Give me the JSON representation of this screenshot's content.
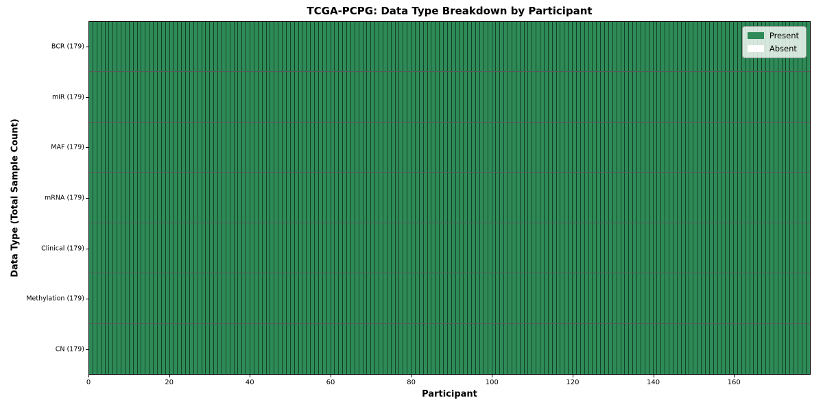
{
  "chart_data": {
    "type": "heatmap",
    "title": "TCGA-PCPG: Data Type Breakdown by Participant",
    "xlabel": "Participant",
    "ylabel": "Data Type (Total Sample Count)",
    "n_participants": 179,
    "x_range": [
      0,
      179
    ],
    "x_ticks": [
      0,
      20,
      40,
      60,
      80,
      100,
      120,
      140,
      160
    ],
    "grid": "cell edges only, no gridlines",
    "legend_position": "upper right",
    "legend": [
      {
        "label": "Present",
        "color": "#2e8b57"
      },
      {
        "label": "Absent",
        "color": "#ffffff"
      }
    ],
    "cell_present_color": "#2e8b57",
    "cell_absent_color": "#ffffff",
    "cell_edge_color": "rgba(0,0,0,0.55)",
    "rows": [
      {
        "label": "BCR (179)",
        "data_type": "BCR",
        "total_samples": 179,
        "present_count": 179,
        "absent_count": 0,
        "present_participant_range": [
          0,
          178
        ]
      },
      {
        "label": "miR (179)",
        "data_type": "miR",
        "total_samples": 179,
        "present_count": 179,
        "absent_count": 0,
        "present_participant_range": [
          0,
          178
        ]
      },
      {
        "label": "MAF (179)",
        "data_type": "MAF",
        "total_samples": 179,
        "present_count": 179,
        "absent_count": 0,
        "present_participant_range": [
          0,
          178
        ]
      },
      {
        "label": "mRNA (179)",
        "data_type": "mRNA",
        "total_samples": 179,
        "present_count": 179,
        "absent_count": 0,
        "present_participant_range": [
          0,
          178
        ]
      },
      {
        "label": "Clinical (179)",
        "data_type": "Clinical",
        "total_samples": 179,
        "present_count": 179,
        "absent_count": 0,
        "present_participant_range": [
          0,
          178
        ]
      },
      {
        "label": "Methylation (179)",
        "data_type": "Methylation",
        "total_samples": 179,
        "present_count": 179,
        "absent_count": 0,
        "present_participant_range": [
          0,
          178
        ]
      },
      {
        "label": "CN (179)",
        "data_type": "CN",
        "total_samples": 179,
        "present_count": 179,
        "absent_count": 0,
        "present_participant_range": [
          0,
          178
        ]
      }
    ]
  }
}
